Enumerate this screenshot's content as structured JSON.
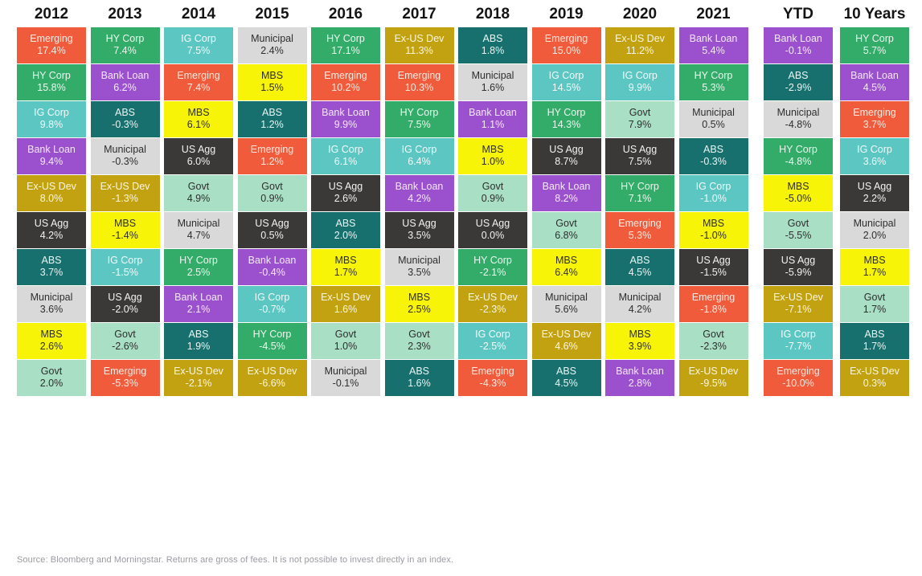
{
  "footer": {
    "source_note": "Source: Bloomberg and Morningstar. Returns are gross of fees. It is not possible to invest directly in an index."
  },
  "asset_colors": {
    "Emerging": {
      "bg": "#EF5B3B",
      "text": "#FDEAE2"
    },
    "HY Corp": {
      "bg": "#33AC69",
      "text": "#EAF8EF"
    },
    "IG Corp": {
      "bg": "#5BC6C2",
      "text": "#F2FCFB"
    },
    "Bank Loan": {
      "bg": "#9B51CE",
      "text": "#F4E9FB"
    },
    "Ex-US Dev": {
      "bg": "#C3A211",
      "text": "#FBF6DF"
    },
    "US Agg": {
      "bg": "#3B3838",
      "text": "#F2F2F2"
    },
    "ABS": {
      "bg": "#17706E",
      "text": "#E8F5F4"
    },
    "Municipal": {
      "bg": "#D9D9D9",
      "text": "#2E2E2E"
    },
    "MBS": {
      "bg": "#F8F407",
      "text": "#2E2E2E"
    },
    "Govt": {
      "bg": "#A9DFC5",
      "text": "#2E2E2E"
    }
  },
  "chart_data": {
    "type": "table",
    "description": "Fixed income asset class calendar-year returns ranked best to worst per column",
    "legend_position": "none",
    "grid": false,
    "columns": [
      {
        "label": "2012",
        "cells": [
          {
            "name": "Emerging",
            "value": "17.4%"
          },
          {
            "name": "HY Corp",
            "value": "15.8%"
          },
          {
            "name": "IG Corp",
            "value": "9.8%"
          },
          {
            "name": "Bank Loan",
            "value": "9.4%"
          },
          {
            "name": "Ex-US Dev",
            "value": "8.0%"
          },
          {
            "name": "US Agg",
            "value": "4.2%"
          },
          {
            "name": "ABS",
            "value": "3.7%"
          },
          {
            "name": "Municipal",
            "value": "3.6%"
          },
          {
            "name": "MBS",
            "value": "2.6%"
          },
          {
            "name": "Govt",
            "value": "2.0%"
          }
        ]
      },
      {
        "label": "2013",
        "cells": [
          {
            "name": "HY Corp",
            "value": "7.4%"
          },
          {
            "name": "Bank Loan",
            "value": "6.2%"
          },
          {
            "name": "ABS",
            "value": "-0.3%"
          },
          {
            "name": "Municipal",
            "value": "-0.3%"
          },
          {
            "name": "Ex-US Dev",
            "value": "-1.3%"
          },
          {
            "name": "MBS",
            "value": "-1.4%"
          },
          {
            "name": "IG Corp",
            "value": "-1.5%"
          },
          {
            "name": "US Agg",
            "value": "-2.0%"
          },
          {
            "name": "Govt",
            "value": "-2.6%"
          },
          {
            "name": "Emerging",
            "value": "-5.3%"
          }
        ]
      },
      {
        "label": "2014",
        "cells": [
          {
            "name": "IG Corp",
            "value": "7.5%"
          },
          {
            "name": "Emerging",
            "value": "7.4%"
          },
          {
            "name": "MBS",
            "value": "6.1%"
          },
          {
            "name": "US Agg",
            "value": "6.0%"
          },
          {
            "name": "Govt",
            "value": "4.9%"
          },
          {
            "name": "Municipal",
            "value": "4.7%"
          },
          {
            "name": "HY Corp",
            "value": "2.5%"
          },
          {
            "name": "Bank Loan",
            "value": "2.1%"
          },
          {
            "name": "ABS",
            "value": "1.9%"
          },
          {
            "name": "Ex-US Dev",
            "value": "-2.1%"
          }
        ]
      },
      {
        "label": "2015",
        "cells": [
          {
            "name": "Municipal",
            "value": "2.4%"
          },
          {
            "name": "MBS",
            "value": "1.5%"
          },
          {
            "name": "ABS",
            "value": "1.2%"
          },
          {
            "name": "Emerging",
            "value": "1.2%"
          },
          {
            "name": "Govt",
            "value": "0.9%"
          },
          {
            "name": "US Agg",
            "value": "0.5%"
          },
          {
            "name": "Bank Loan",
            "value": "-0.4%"
          },
          {
            "name": "IG Corp",
            "value": "-0.7%"
          },
          {
            "name": "HY Corp",
            "value": "-4.5%"
          },
          {
            "name": "Ex-US Dev",
            "value": "-6.6%"
          }
        ]
      },
      {
        "label": "2016",
        "cells": [
          {
            "name": "HY Corp",
            "value": "17.1%"
          },
          {
            "name": "Emerging",
            "value": "10.2%"
          },
          {
            "name": "Bank Loan",
            "value": "9.9%"
          },
          {
            "name": "IG Corp",
            "value": "6.1%"
          },
          {
            "name": "US Agg",
            "value": "2.6%"
          },
          {
            "name": "ABS",
            "value": "2.0%"
          },
          {
            "name": "MBS",
            "value": "1.7%"
          },
          {
            "name": "Ex-US Dev",
            "value": "1.6%"
          },
          {
            "name": "Govt",
            "value": "1.0%"
          },
          {
            "name": "Municipal",
            "value": "-0.1%"
          }
        ]
      },
      {
        "label": "2017",
        "cells": [
          {
            "name": "Ex-US Dev",
            "value": "11.3%"
          },
          {
            "name": "Emerging",
            "value": "10.3%"
          },
          {
            "name": "HY Corp",
            "value": "7.5%"
          },
          {
            "name": "IG Corp",
            "value": "6.4%"
          },
          {
            "name": "Bank Loan",
            "value": "4.2%"
          },
          {
            "name": "US Agg",
            "value": "3.5%"
          },
          {
            "name": "Municipal",
            "value": "3.5%"
          },
          {
            "name": "MBS",
            "value": "2.5%"
          },
          {
            "name": "Govt",
            "value": "2.3%"
          },
          {
            "name": "ABS",
            "value": "1.6%"
          }
        ]
      },
      {
        "label": "2018",
        "cells": [
          {
            "name": "ABS",
            "value": "1.8%"
          },
          {
            "name": "Municipal",
            "value": "1.6%"
          },
          {
            "name": "Bank Loan",
            "value": "1.1%"
          },
          {
            "name": "MBS",
            "value": "1.0%"
          },
          {
            "name": "Govt",
            "value": "0.9%"
          },
          {
            "name": "US Agg",
            "value": "0.0%"
          },
          {
            "name": "HY Corp",
            "value": "-2.1%"
          },
          {
            "name": "Ex-US Dev",
            "value": "-2.3%"
          },
          {
            "name": "IG Corp",
            "value": "-2.5%"
          },
          {
            "name": "Emerging",
            "value": "-4.3%"
          }
        ]
      },
      {
        "label": "2019",
        "cells": [
          {
            "name": "Emerging",
            "value": "15.0%"
          },
          {
            "name": "IG Corp",
            "value": "14.5%"
          },
          {
            "name": "HY Corp",
            "value": "14.3%"
          },
          {
            "name": "US Agg",
            "value": "8.7%"
          },
          {
            "name": "Bank Loan",
            "value": "8.2%"
          },
          {
            "name": "Govt",
            "value": "6.8%"
          },
          {
            "name": "MBS",
            "value": "6.4%"
          },
          {
            "name": "Municipal",
            "value": "5.6%"
          },
          {
            "name": "Ex-US Dev",
            "value": "4.6%"
          },
          {
            "name": "ABS",
            "value": "4.5%"
          }
        ]
      },
      {
        "label": "2020",
        "cells": [
          {
            "name": "Ex-US Dev",
            "value": "11.2%"
          },
          {
            "name": "IG Corp",
            "value": "9.9%"
          },
          {
            "name": "Govt",
            "value": "7.9%"
          },
          {
            "name": "US Agg",
            "value": "7.5%"
          },
          {
            "name": "HY Corp",
            "value": "7.1%"
          },
          {
            "name": "Emerging",
            "value": "5.3%"
          },
          {
            "name": "ABS",
            "value": "4.5%"
          },
          {
            "name": "Municipal",
            "value": "4.2%"
          },
          {
            "name": "MBS",
            "value": "3.9%"
          },
          {
            "name": "Bank Loan",
            "value": "2.8%"
          }
        ]
      },
      {
        "label": "2021",
        "cells": [
          {
            "name": "Bank Loan",
            "value": "5.4%"
          },
          {
            "name": "HY Corp",
            "value": "5.3%"
          },
          {
            "name": "Municipal",
            "value": "0.5%"
          },
          {
            "name": "ABS",
            "value": "-0.3%"
          },
          {
            "name": "IG Corp",
            "value": "-1.0%"
          },
          {
            "name": "MBS",
            "value": "-1.0%"
          },
          {
            "name": "US Agg",
            "value": "-1.5%"
          },
          {
            "name": "Emerging",
            "value": "-1.8%"
          },
          {
            "name": "Govt",
            "value": "-2.3%"
          },
          {
            "name": "Ex-US Dev",
            "value": "-9.5%"
          }
        ]
      },
      {
        "label": "YTD",
        "cells": [
          {
            "name": "Bank Loan",
            "value": "-0.1%"
          },
          {
            "name": "ABS",
            "value": "-2.9%"
          },
          {
            "name": "Municipal",
            "value": "-4.8%"
          },
          {
            "name": "HY Corp",
            "value": "-4.8%"
          },
          {
            "name": "MBS",
            "value": "-5.0%"
          },
          {
            "name": "Govt",
            "value": "-5.5%"
          },
          {
            "name": "US Agg",
            "value": "-5.9%"
          },
          {
            "name": "Ex-US Dev",
            "value": "-7.1%"
          },
          {
            "name": "IG Corp",
            "value": "-7.7%"
          },
          {
            "name": "Emerging",
            "value": "-10.0%"
          }
        ]
      },
      {
        "label": "10 Years",
        "cells": [
          {
            "name": "HY Corp",
            "value": "5.7%"
          },
          {
            "name": "Bank Loan",
            "value": "4.5%"
          },
          {
            "name": "Emerging",
            "value": "3.7%"
          },
          {
            "name": "IG Corp",
            "value": "3.6%"
          },
          {
            "name": "US Agg",
            "value": "2.2%"
          },
          {
            "name": "Municipal",
            "value": "2.0%"
          },
          {
            "name": "MBS",
            "value": "1.7%"
          },
          {
            "name": "Govt",
            "value": "1.7%"
          },
          {
            "name": "ABS",
            "value": "1.7%"
          },
          {
            "name": "Ex-US Dev",
            "value": "0.3%"
          }
        ]
      }
    ]
  }
}
